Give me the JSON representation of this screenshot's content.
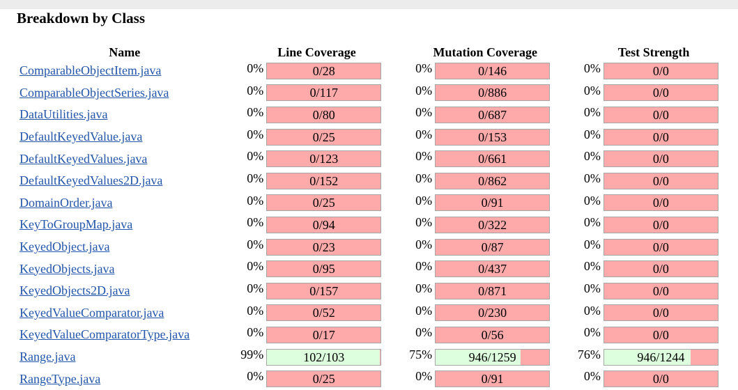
{
  "title": "Breakdown by Class",
  "headers": {
    "name": "Name",
    "line": "Line Coverage",
    "mutation": "Mutation Coverage",
    "strength": "Test Strength"
  },
  "rows": [
    {
      "name": "ComparableObjectItem.java",
      "line_pct": "0%",
      "line": "0/28",
      "line_fill": 0,
      "mut_pct": "0%",
      "mut": "0/146",
      "mut_fill": 0,
      "ts_pct": "0%",
      "ts": "0/0",
      "ts_fill": 0
    },
    {
      "name": "ComparableObjectSeries.java",
      "line_pct": "0%",
      "line": "0/117",
      "line_fill": 0,
      "mut_pct": "0%",
      "mut": "0/886",
      "mut_fill": 0,
      "ts_pct": "0%",
      "ts": "0/0",
      "ts_fill": 0
    },
    {
      "name": "DataUtilities.java",
      "line_pct": "0%",
      "line": "0/80",
      "line_fill": 0,
      "mut_pct": "0%",
      "mut": "0/687",
      "mut_fill": 0,
      "ts_pct": "0%",
      "ts": "0/0",
      "ts_fill": 0
    },
    {
      "name": "DefaultKeyedValue.java",
      "line_pct": "0%",
      "line": "0/25",
      "line_fill": 0,
      "mut_pct": "0%",
      "mut": "0/153",
      "mut_fill": 0,
      "ts_pct": "0%",
      "ts": "0/0",
      "ts_fill": 0
    },
    {
      "name": "DefaultKeyedValues.java",
      "line_pct": "0%",
      "line": "0/123",
      "line_fill": 0,
      "mut_pct": "0%",
      "mut": "0/661",
      "mut_fill": 0,
      "ts_pct": "0%",
      "ts": "0/0",
      "ts_fill": 0
    },
    {
      "name": "DefaultKeyedValues2D.java",
      "line_pct": "0%",
      "line": "0/152",
      "line_fill": 0,
      "mut_pct": "0%",
      "mut": "0/862",
      "mut_fill": 0,
      "ts_pct": "0%",
      "ts": "0/0",
      "ts_fill": 0
    },
    {
      "name": "DomainOrder.java",
      "line_pct": "0%",
      "line": "0/25",
      "line_fill": 0,
      "mut_pct": "0%",
      "mut": "0/91",
      "mut_fill": 0,
      "ts_pct": "0%",
      "ts": "0/0",
      "ts_fill": 0
    },
    {
      "name": "KeyToGroupMap.java",
      "line_pct": "0%",
      "line": "0/94",
      "line_fill": 0,
      "mut_pct": "0%",
      "mut": "0/322",
      "mut_fill": 0,
      "ts_pct": "0%",
      "ts": "0/0",
      "ts_fill": 0
    },
    {
      "name": "KeyedObject.java",
      "line_pct": "0%",
      "line": "0/23",
      "line_fill": 0,
      "mut_pct": "0%",
      "mut": "0/87",
      "mut_fill": 0,
      "ts_pct": "0%",
      "ts": "0/0",
      "ts_fill": 0
    },
    {
      "name": "KeyedObjects.java",
      "line_pct": "0%",
      "line": "0/95",
      "line_fill": 0,
      "mut_pct": "0%",
      "mut": "0/437",
      "mut_fill": 0,
      "ts_pct": "0%",
      "ts": "0/0",
      "ts_fill": 0
    },
    {
      "name": "KeyedObjects2D.java",
      "line_pct": "0%",
      "line": "0/157",
      "line_fill": 0,
      "mut_pct": "0%",
      "mut": "0/871",
      "mut_fill": 0,
      "ts_pct": "0%",
      "ts": "0/0",
      "ts_fill": 0
    },
    {
      "name": "KeyedValueComparator.java",
      "line_pct": "0%",
      "line": "0/52",
      "line_fill": 0,
      "mut_pct": "0%",
      "mut": "0/230",
      "mut_fill": 0,
      "ts_pct": "0%",
      "ts": "0/0",
      "ts_fill": 0
    },
    {
      "name": "KeyedValueComparatorType.java",
      "line_pct": "0%",
      "line": "0/17",
      "line_fill": 0,
      "mut_pct": "0%",
      "mut": "0/56",
      "mut_fill": 0,
      "ts_pct": "0%",
      "ts": "0/0",
      "ts_fill": 0
    },
    {
      "name": "Range.java",
      "line_pct": "99%",
      "line": "102/103",
      "line_fill": 99,
      "mut_pct": "75%",
      "mut": "946/1259",
      "mut_fill": 75,
      "ts_pct": "76%",
      "ts": "946/1244",
      "ts_fill": 76
    },
    {
      "name": "RangeType.java",
      "line_pct": "0%",
      "line": "0/25",
      "line_fill": 0,
      "mut_pct": "0%",
      "mut": "0/91",
      "mut_fill": 0,
      "ts_pct": "0%",
      "ts": "0/0",
      "ts_fill": 0
    }
  ]
}
